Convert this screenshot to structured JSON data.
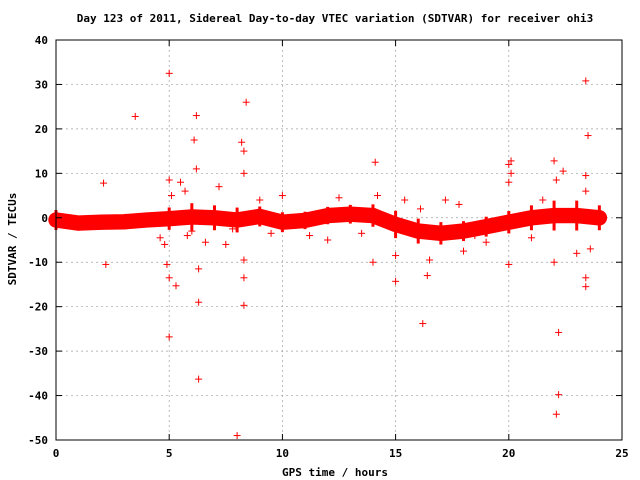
{
  "chart_data": {
    "type": "scatter",
    "title": "Day 123 of 2011, Sidereal Day-to-day VTEC variation (SDTVAR) for receiver ohi3",
    "xlabel": "GPS time / hours",
    "ylabel": "SDTVAR / TECUs",
    "xlim": [
      0,
      25
    ],
    "ylim": [
      -50,
      40
    ],
    "xticks": [
      "0",
      "5",
      "10",
      "15",
      "20",
      "25"
    ],
    "yticks": [
      "-50",
      "-40",
      "-30",
      "-20",
      "-10",
      "0",
      "10",
      "20",
      "30",
      "40"
    ],
    "grid": true,
    "marker": "plus",
    "color": "#ff0000",
    "dense_band": [
      {
        "x": 0.0,
        "center": -0.5,
        "spread": 1.6
      },
      {
        "x": 1.0,
        "center": -1.2,
        "spread": 1.2
      },
      {
        "x": 2.0,
        "center": -1.0,
        "spread": 1.1
      },
      {
        "x": 3.0,
        "center": -0.9,
        "spread": 1.1
      },
      {
        "x": 4.0,
        "center": -0.5,
        "spread": 1.2
      },
      {
        "x": 5.0,
        "center": -0.2,
        "spread": 1.8
      },
      {
        "x": 6.0,
        "center": 0.2,
        "spread": 2.2
      },
      {
        "x": 7.0,
        "center": 0.0,
        "spread": 2.0
      },
      {
        "x": 8.0,
        "center": -0.5,
        "spread": 2.0
      },
      {
        "x": 9.0,
        "center": 0.3,
        "spread": 1.6
      },
      {
        "x": 10.0,
        "center": -1.0,
        "spread": 1.6
      },
      {
        "x": 11.0,
        "center": -0.6,
        "spread": 1.4
      },
      {
        "x": 12.0,
        "center": 0.5,
        "spread": 1.4
      },
      {
        "x": 13.0,
        "center": 0.8,
        "spread": 1.5
      },
      {
        "x": 14.0,
        "center": 0.5,
        "spread": 1.8
      },
      {
        "x": 15.0,
        "center": -1.5,
        "spread": 2.2
      },
      {
        "x": 16.0,
        "center": -3.0,
        "spread": 2.0
      },
      {
        "x": 17.0,
        "center": -3.5,
        "spread": 1.8
      },
      {
        "x": 18.0,
        "center": -3.0,
        "spread": 1.6
      },
      {
        "x": 19.0,
        "center": -2.0,
        "spread": 1.6
      },
      {
        "x": 20.0,
        "center": -1.0,
        "spread": 1.8
      },
      {
        "x": 21.0,
        "center": 0.0,
        "spread": 2.0
      },
      {
        "x": 22.0,
        "center": 0.5,
        "spread": 2.4
      },
      {
        "x": 23.0,
        "center": 0.5,
        "spread": 2.4
      },
      {
        "x": 24.0,
        "center": 0.0,
        "spread": 2.0
      }
    ],
    "outliers": [
      {
        "x": 2.1,
        "y": 7.8
      },
      {
        "x": 2.2,
        "y": -10.5
      },
      {
        "x": 3.5,
        "y": 22.8
      },
      {
        "x": 4.6,
        "y": -4.5
      },
      {
        "x": 4.8,
        "y": -6.0
      },
      {
        "x": 4.9,
        "y": -10.5
      },
      {
        "x": 5.0,
        "y": -13.5
      },
      {
        "x": 5.0,
        "y": -26.8
      },
      {
        "x": 5.0,
        "y": 32.5
      },
      {
        "x": 5.0,
        "y": 8.5
      },
      {
        "x": 5.1,
        "y": 5.0
      },
      {
        "x": 5.3,
        "y": -15.3
      },
      {
        "x": 5.5,
        "y": 8.0
      },
      {
        "x": 5.7,
        "y": 6.0
      },
      {
        "x": 6.0,
        "y": -3.0
      },
      {
        "x": 6.1,
        "y": 17.5
      },
      {
        "x": 6.2,
        "y": 11.0
      },
      {
        "x": 6.2,
        "y": 23.0
      },
      {
        "x": 6.3,
        "y": -11.5
      },
      {
        "x": 6.3,
        "y": -19.0
      },
      {
        "x": 6.3,
        "y": -36.3
      },
      {
        "x": 7.2,
        "y": 7.0
      },
      {
        "x": 7.5,
        "y": -6.0
      },
      {
        "x": 8.0,
        "y": -49.0
      },
      {
        "x": 8.2,
        "y": 17.0
      },
      {
        "x": 8.3,
        "y": 15.0
      },
      {
        "x": 8.3,
        "y": 10.0
      },
      {
        "x": 8.3,
        "y": -9.5
      },
      {
        "x": 8.3,
        "y": -13.5
      },
      {
        "x": 8.3,
        "y": -19.7
      },
      {
        "x": 8.4,
        "y": 26.0
      },
      {
        "x": 9.0,
        "y": 4.0
      },
      {
        "x": 10.0,
        "y": 5.0
      },
      {
        "x": 11.2,
        "y": -4.0
      },
      {
        "x": 12.5,
        "y": 4.5
      },
      {
        "x": 14.1,
        "y": 12.5
      },
      {
        "x": 14.2,
        "y": 5.0
      },
      {
        "x": 14.0,
        "y": -10.0
      },
      {
        "x": 15.0,
        "y": -8.5
      },
      {
        "x": 15.0,
        "y": -14.3
      },
      {
        "x": 16.1,
        "y": 2.0
      },
      {
        "x": 16.2,
        "y": -23.8
      },
      {
        "x": 16.4,
        "y": -13.0
      },
      {
        "x": 16.5,
        "y": -9.5
      },
      {
        "x": 17.2,
        "y": 4.0
      },
      {
        "x": 17.8,
        "y": 3.0
      },
      {
        "x": 18.0,
        "y": -7.5
      },
      {
        "x": 20.0,
        "y": 12.0
      },
      {
        "x": 20.1,
        "y": 12.8
      },
      {
        "x": 20.1,
        "y": 10.0
      },
      {
        "x": 20.0,
        "y": 8.0
      },
      {
        "x": 20.0,
        "y": -10.5
      },
      {
        "x": 21.5,
        "y": 4.0
      },
      {
        "x": 22.0,
        "y": 12.8
      },
      {
        "x": 22.1,
        "y": 8.5
      },
      {
        "x": 22.0,
        "y": -10.0
      },
      {
        "x": 22.2,
        "y": -25.8
      },
      {
        "x": 22.2,
        "y": -39.8
      },
      {
        "x": 22.1,
        "y": -44.2
      },
      {
        "x": 22.4,
        "y": 10.5
      },
      {
        "x": 23.4,
        "y": 30.8
      },
      {
        "x": 23.5,
        "y": 18.5
      },
      {
        "x": 23.4,
        "y": 9.5
      },
      {
        "x": 23.4,
        "y": 6.0
      },
      {
        "x": 23.4,
        "y": -13.5
      },
      {
        "x": 23.4,
        "y": -15.5
      },
      {
        "x": 23.0,
        "y": -8.0
      },
      {
        "x": 23.6,
        "y": -7.0
      },
      {
        "x": 12.0,
        "y": -5.0
      },
      {
        "x": 13.5,
        "y": -3.5
      },
      {
        "x": 15.4,
        "y": 4.0
      },
      {
        "x": 18.5,
        "y": -4.0
      },
      {
        "x": 19.0,
        "y": -5.5
      },
      {
        "x": 21.0,
        "y": -4.5
      },
      {
        "x": 9.5,
        "y": -3.5
      },
      {
        "x": 7.8,
        "y": -2.5
      },
      {
        "x": 6.6,
        "y": -5.5
      },
      {
        "x": 5.8,
        "y": -4.0
      }
    ]
  }
}
